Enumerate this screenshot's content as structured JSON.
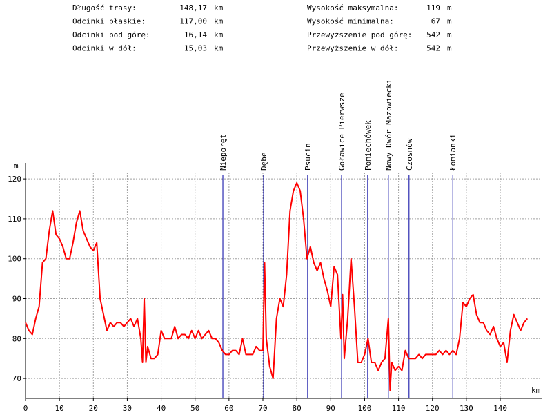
{
  "stats": {
    "left": [
      {
        "label": "Długość trasy:",
        "value": "148,17",
        "unit": "km"
      },
      {
        "label": "Odcinki płaskie:",
        "value": "117,00",
        "unit": "km"
      },
      {
        "label": "Odcinki pod górę:",
        "value": "16,14",
        "unit": "km"
      },
      {
        "label": "Odcinki w dół:",
        "value": "15,03",
        "unit": "km"
      }
    ],
    "right": [
      {
        "label": "Wysokość maksymalna:",
        "value": "119",
        "unit": "m"
      },
      {
        "label": "Wysokość minimalna:",
        "value": "67",
        "unit": "m"
      },
      {
        "label": "Przewyższenie pod górę:",
        "value": "542",
        "unit": "m"
      },
      {
        "label": "Przewyższenie w dół:",
        "value": "542",
        "unit": "m"
      }
    ]
  },
  "chart_data": {
    "type": "line",
    "x_label": "km",
    "y_label": "m",
    "color": "#ff0000",
    "marker_color": "#0000a0",
    "grid": true,
    "xlim": [
      0,
      152
    ],
    "ylim": [
      65,
      124
    ],
    "xticks": [
      0,
      10,
      20,
      30,
      40,
      50,
      60,
      70,
      80,
      90,
      100,
      110,
      120,
      130,
      140
    ],
    "yticks": [
      70,
      80,
      90,
      100,
      110,
      120
    ],
    "markers": [
      {
        "label": "Nieporęt",
        "x": 58.2
      },
      {
        "label": "Dębe",
        "x": 70.2
      },
      {
        "label": "Psucin",
        "x": 83.2
      },
      {
        "label": "Goławice Pierwsze",
        "x": 93.2
      },
      {
        "label": "Pomiechówek",
        "x": 100.9
      },
      {
        "label": "Nowy Dwór Mazowiecki",
        "x": 107.0
      },
      {
        "label": "Czosnów",
        "x": 113.1
      },
      {
        "label": "Łomianki",
        "x": 126.0
      }
    ],
    "x": [
      0,
      1,
      2,
      3,
      4,
      5,
      6,
      7,
      8,
      9,
      10,
      11,
      12,
      13,
      14,
      15,
      16,
      17,
      18,
      19,
      20,
      21,
      22,
      23,
      24,
      25,
      26,
      27,
      28,
      29,
      30,
      31,
      32,
      33,
      34,
      34.5,
      35,
      35.5,
      36,
      37,
      38,
      39,
      40,
      41,
      42,
      43,
      44,
      45,
      46,
      47,
      48,
      49,
      50,
      51,
      52,
      53,
      54,
      55,
      56,
      57,
      58,
      59,
      60,
      61,
      62,
      63,
      64,
      65,
      66,
      67,
      68,
      69,
      70,
      70.5,
      71,
      72,
      73,
      74,
      75,
      76,
      77,
      78,
      79,
      80,
      81,
      82,
      83,
      84,
      85,
      86,
      87,
      88,
      89,
      90,
      91,
      92,
      93,
      93.5,
      94,
      95,
      96,
      97,
      98,
      99,
      100,
      101,
      102,
      103,
      104,
      105,
      106,
      107,
      107.5,
      108,
      109,
      110,
      111,
      112,
      113,
      114,
      115,
      116,
      117,
      118,
      119,
      120,
      121,
      122,
      123,
      124,
      125,
      126,
      127,
      128,
      129,
      130,
      131,
      132,
      133,
      134,
      135,
      136,
      137,
      138,
      139,
      140,
      141,
      142,
      143,
      144,
      145,
      146,
      147,
      148
    ],
    "values": [
      84,
      82,
      81,
      85,
      88,
      99,
      100,
      107,
      112,
      106,
      105,
      103,
      100,
      100,
      104,
      109,
      112,
      107,
      105,
      103,
      102,
      104,
      90,
      86,
      82,
      84,
      83,
      84,
      84,
      83,
      84,
      85,
      83,
      85,
      80,
      74,
      90,
      74,
      78,
      75,
      75,
      76,
      82,
      80,
      80,
      80,
      83,
      80,
      81,
      81,
      80,
      82,
      80,
      82,
      80,
      81,
      82,
      80,
      80,
      79,
      77,
      76,
      76,
      77,
      77,
      76,
      80,
      76,
      76,
      76,
      78,
      77,
      77,
      99,
      80,
      73,
      70,
      85,
      90,
      88,
      96,
      112,
      117,
      119,
      117,
      110,
      100,
      103,
      99,
      97,
      99,
      95,
      92,
      88,
      98,
      96,
      80,
      91,
      75,
      85,
      100,
      88,
      74,
      74,
      76,
      80,
      74,
      74,
      72,
      74,
      75,
      85,
      67,
      74,
      72,
      73,
      72,
      77,
      75,
      75,
      75,
      76,
      75,
      76,
      76,
      76,
      76,
      77,
      76,
      77,
      76,
      77,
      76,
      80,
      89,
      88,
      90,
      91,
      86,
      84,
      84,
      82,
      81,
      83,
      80,
      78,
      79,
      74,
      82,
      86,
      84,
      82,
      84,
      85
    ]
  }
}
